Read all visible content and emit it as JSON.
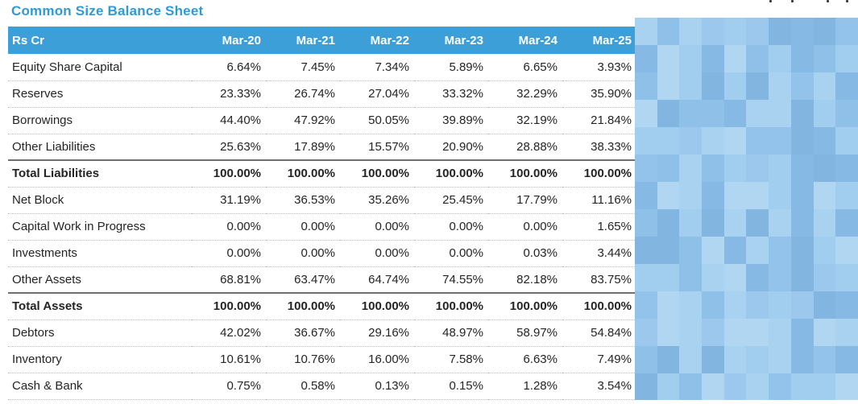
{
  "title": "Common Size Balance Sheet",
  "table": {
    "unit_label": "Rs Cr",
    "columns": [
      "Mar-20",
      "Mar-21",
      "Mar-22",
      "Mar-23",
      "Mar-24",
      "Mar-25"
    ],
    "rows": [
      {
        "label": "Equity Share Capital",
        "bold": false,
        "values": [
          "6.64%",
          "7.45%",
          "7.34%",
          "5.89%",
          "6.65%",
          "3.93%"
        ]
      },
      {
        "label": "Reserves",
        "bold": false,
        "values": [
          "23.33%",
          "26.74%",
          "27.04%",
          "33.32%",
          "32.29%",
          "35.90%"
        ]
      },
      {
        "label": "Borrowings",
        "bold": false,
        "values": [
          "44.40%",
          "47.92%",
          "50.05%",
          "39.89%",
          "32.19%",
          "21.84%"
        ]
      },
      {
        "label": "Other Liabilities",
        "bold": false,
        "values": [
          "25.63%",
          "17.89%",
          "15.57%",
          "20.90%",
          "28.88%",
          "38.33%"
        ]
      },
      {
        "label": "Total Liabilities",
        "bold": true,
        "values": [
          "100.00%",
          "100.00%",
          "100.00%",
          "100.00%",
          "100.00%",
          "100.00%"
        ]
      },
      {
        "label": "Net Block",
        "bold": false,
        "values": [
          "31.19%",
          "36.53%",
          "35.26%",
          "25.45%",
          "17.79%",
          "11.16%"
        ]
      },
      {
        "label": "Capital Work in Progress",
        "bold": false,
        "values": [
          "0.00%",
          "0.00%",
          "0.00%",
          "0.00%",
          "0.00%",
          "1.65%"
        ]
      },
      {
        "label": "Investments",
        "bold": false,
        "values": [
          "0.00%",
          "0.00%",
          "0.00%",
          "0.00%",
          "0.03%",
          "3.44%"
        ]
      },
      {
        "label": "Other Assets",
        "bold": false,
        "values": [
          "68.81%",
          "63.47%",
          "64.74%",
          "74.55%",
          "82.18%",
          "83.75%"
        ]
      },
      {
        "label": "Total Assets",
        "bold": true,
        "values": [
          "100.00%",
          "100.00%",
          "100.00%",
          "100.00%",
          "100.00%",
          "100.00%"
        ]
      },
      {
        "label": "Debtors",
        "bold": false,
        "values": [
          "42.02%",
          "36.67%",
          "29.16%",
          "48.97%",
          "58.97%",
          "54.84%"
        ]
      },
      {
        "label": "Inventory",
        "bold": false,
        "values": [
          "10.61%",
          "10.76%",
          "16.00%",
          "7.58%",
          "6.63%",
          "7.49%"
        ]
      },
      {
        "label": "Cash & Bank",
        "bold": false,
        "values": [
          "0.75%",
          "0.58%",
          "0.13%",
          "0.15%",
          "1.28%",
          "3.54%"
        ]
      }
    ]
  },
  "colors": {
    "title_text": "#2e9ad6",
    "header_bg": "#3c9fd8",
    "header_text": "#ffffff",
    "body_text": "#242424",
    "dotted_divider": "#bdbdbd",
    "total_rule": "#6f6f6f"
  },
  "redacted_panel": {
    "kind": "pixelated-blur-overlay",
    "palette": [
      "#a9d2f0",
      "#93c3ea",
      "#86b9e4",
      "#9cc8ed",
      "#8fc0e8",
      "#b0d6f2",
      "#82b6e1",
      "#a1cdef"
    ]
  },
  "crop_fragment_positions": [
    955,
    982,
    1026,
    1050
  ]
}
